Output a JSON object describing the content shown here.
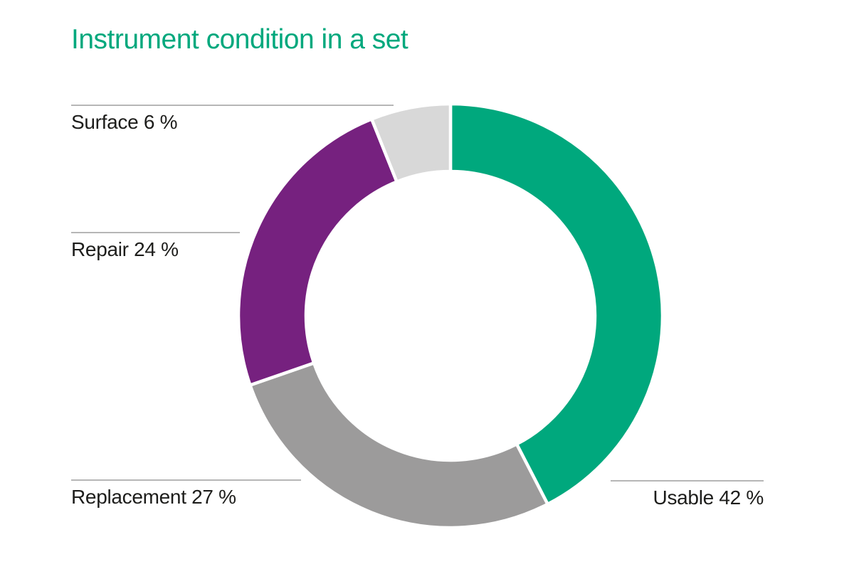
{
  "page": {
    "background_color": "#ffffff",
    "text_color": "#1d1d1b",
    "callout_line_color": "#9d9d9d"
  },
  "header": {
    "title": "Instrument condition in a set",
    "title_color": "#00a87d"
  },
  "chart_data": {
    "type": "pie",
    "variant": "donut",
    "title": "Instrument condition in a set",
    "unit": "%",
    "start_angle_deg": 0,
    "direction": "clockwise",
    "inner_radius_ratio": 0.68,
    "segment_gap_color": "#ffffff",
    "legend_position": "callouts",
    "segments": [
      {
        "label": "Usable",
        "value": 42,
        "color": "#00a87d"
      },
      {
        "label": "Replacement",
        "value": 27,
        "color": "#9c9b9b"
      },
      {
        "label": "Repair",
        "value": 24,
        "color": "#76217f"
      },
      {
        "label": "Surface",
        "value": 6,
        "color": "#d8d8d8"
      }
    ],
    "callouts": [
      {
        "segment": "Surface",
        "text": "Surface 6 %"
      },
      {
        "segment": "Repair",
        "text": "Repair 24 %"
      },
      {
        "segment": "Replacement",
        "text": "Replacement 27 %"
      },
      {
        "segment": "Usable",
        "text": "Usable 42 %"
      }
    ]
  }
}
